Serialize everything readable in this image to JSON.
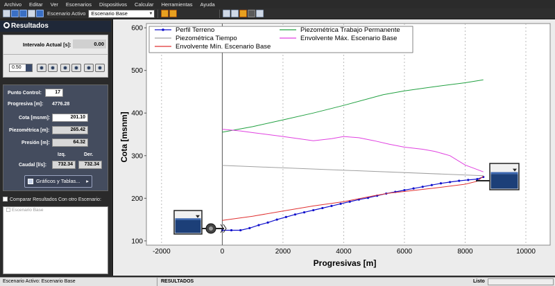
{
  "menu": [
    "Archivo",
    "Editar",
    "Ver",
    "Escenarios",
    "Dispositivos",
    "Calcular",
    "Herramientas",
    "Ayuda"
  ],
  "toolbar": {
    "scenario_label": "Escenario Activo",
    "scenario_value": "Escenario Base"
  },
  "panel": {
    "title": "Resultados",
    "interval_label": "Intervalo Actual [s]:",
    "interval_value": "0.00",
    "speed_value": "0.50",
    "control_point_label": "Punto Control:",
    "control_point_value": "17",
    "progresiva_label": "Progresiva [m]:",
    "progresiva_value": "4776.28",
    "cota_label": "Cota [msnm]:",
    "cota_value": "201.10",
    "piezo_label": "Piezométrica [m]:",
    "piezo_value": "265.42",
    "presion_label": "Presión [m]:",
    "presion_value": "64.32",
    "izq_label": "Izq.",
    "der_label": "Der.",
    "caudal_label": "Caudal [l/s]:",
    "caudal_izq": "732.34",
    "caudal_der": "732.34",
    "graficos_button": "Gráficos y Tablas...",
    "compare_label": "Comparar Resultados Con otro Escenario:",
    "scenario_list": [
      "Escenario Base"
    ]
  },
  "status": {
    "active": "Escenario Activo: Escenario Base",
    "mode": "RESULTADOS",
    "state": "Listo"
  },
  "colors": {
    "terreno": "#1010cc",
    "tiempo": "#a0a0a0",
    "min": "#e03030",
    "permanente": "#20a040",
    "max": "#e040e0"
  },
  "chart_data": {
    "type": "line",
    "xlabel": "Progresivas [m]",
    "ylabel": "Cota [msnm]",
    "xlim": [
      -2500,
      10800
    ],
    "ylim": [
      90,
      610
    ],
    "xticks": [
      -2000,
      0,
      2000,
      4000,
      6000,
      8000,
      10000
    ],
    "yticks": [
      100,
      200,
      300,
      400,
      500,
      600
    ],
    "legend": "top",
    "series": [
      {
        "name": "Perfil Terreno",
        "key": "terreno",
        "marker": true,
        "x": [
          0,
          300,
          600,
          900,
          1200,
          1500,
          1800,
          2100,
          2400,
          2700,
          3000,
          3300,
          3600,
          3900,
          4200,
          4500,
          4800,
          5100,
          5400,
          5700,
          6000,
          6300,
          6600,
          6900,
          7200,
          7500,
          7800,
          8100,
          8400,
          8600
        ],
        "y": [
          125,
          125,
          125,
          130,
          137,
          143,
          150,
          156,
          162,
          167,
          172,
          177,
          182,
          187,
          192,
          197,
          201,
          206,
          211,
          215,
          219,
          223,
          227,
          231,
          235,
          238,
          241,
          243,
          245,
          250
        ]
      },
      {
        "name": "Piezométrica Trabajo Permanente",
        "key": "permanente",
        "marker": false,
        "x": [
          0,
          1000,
          2000,
          3000,
          4000,
          5300,
          6000,
          7000,
          8000,
          8600
        ],
        "y": [
          355,
          368,
          384,
          400,
          418,
          443,
          452,
          462,
          471,
          478
        ]
      },
      {
        "name": "Piezométrica Tiempo",
        "key": "tiempo",
        "marker": false,
        "x": [
          0,
          8600
        ],
        "y": [
          277,
          253
        ]
      },
      {
        "name": "Envolvente Máx. Escenario Base",
        "key": "max",
        "marker": false,
        "x": [
          0,
          600,
          1000,
          2000,
          3000,
          3600,
          4000,
          4500,
          5000,
          5500,
          6000,
          6600,
          7000,
          7500,
          8000,
          8300,
          8600
        ],
        "y": [
          362,
          358,
          354,
          345,
          335,
          340,
          345,
          342,
          335,
          327,
          320,
          315,
          310,
          300,
          278,
          270,
          262
        ]
      },
      {
        "name": "Envolvente Mín. Escenario Base",
        "key": "min",
        "marker": false,
        "x": [
          0,
          1000,
          2000,
          3000,
          4000,
          5000,
          5500,
          6000,
          7000,
          8000,
          8400,
          8600
        ],
        "y": [
          148,
          158,
          170,
          182,
          192,
          206,
          212,
          216,
          224,
          233,
          240,
          252
        ]
      }
    ]
  }
}
